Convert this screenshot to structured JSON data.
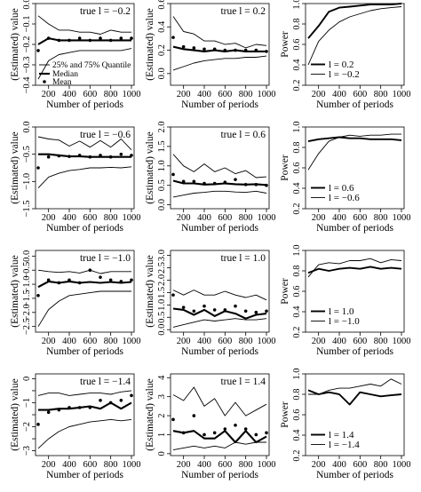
{
  "figure": {
    "periods": [
      100,
      200,
      300,
      400,
      500,
      600,
      700,
      800,
      900,
      1000
    ],
    "x_ticks": [
      200,
      400,
      600,
      800,
      1000
    ],
    "xlabel": "Number of periods",
    "legend_labels": {
      "quantile": "25% and 75% Quantile",
      "median": "Median",
      "mean": "Mean"
    }
  },
  "chart_data": [
    {
      "type": "line",
      "panel": "r1c1",
      "title": "true l = −0.2",
      "xlabel": "Number of periods",
      "ylabel": "(Estimated) value",
      "xlim": [
        100,
        1000
      ],
      "ylim": [
        -0.4,
        0.0
      ],
      "yticks": [
        -0.4,
        -0.3,
        -0.2,
        -0.1,
        0.0
      ],
      "ytick_labels": [
        "−0.4",
        "−0.3",
        "−0.2",
        "−0.1",
        "0.0"
      ],
      "series": [
        {
          "role": "upper",
          "values": [
            -0.06,
            -0.1,
            -0.13,
            -0.13,
            -0.14,
            -0.14,
            -0.15,
            -0.13,
            -0.14,
            -0.14
          ]
        },
        {
          "role": "lower",
          "values": [
            -0.37,
            -0.28,
            -0.25,
            -0.24,
            -0.23,
            -0.23,
            -0.23,
            -0.23,
            -0.23,
            -0.22
          ]
        },
        {
          "role": "median",
          "values": [
            -0.2,
            -0.17,
            -0.18,
            -0.18,
            -0.18,
            -0.18,
            -0.18,
            -0.18,
            -0.18,
            -0.18
          ]
        },
        {
          "role": "mean",
          "values": [
            -0.23,
            -0.17,
            -0.18,
            -0.18,
            -0.17,
            -0.18,
            -0.17,
            -0.18,
            -0.17,
            -0.17
          ]
        }
      ],
      "legend": {
        "position": "bottom-right"
      }
    },
    {
      "type": "line",
      "panel": "r1c2",
      "title": "true l = 0.2",
      "xlabel": "Number of periods",
      "ylabel": "(Estimated) value",
      "xlim": [
        100,
        1000
      ],
      "ylim": [
        -0.1,
        0.6
      ],
      "yticks": [
        0.0,
        0.2,
        0.4,
        0.6
      ],
      "ytick_labels": [
        "0.0",
        "0.2",
        "0.4",
        "0.6"
      ],
      "series": [
        {
          "role": "upper",
          "values": [
            0.49,
            0.36,
            0.34,
            0.28,
            0.28,
            0.25,
            0.26,
            0.22,
            0.25,
            0.24
          ]
        },
        {
          "role": "lower",
          "values": [
            0.03,
            0.06,
            0.09,
            0.11,
            0.12,
            0.13,
            0.13,
            0.14,
            0.14,
            0.15
          ]
        },
        {
          "role": "median",
          "values": [
            0.23,
            0.21,
            0.2,
            0.19,
            0.2,
            0.19,
            0.2,
            0.19,
            0.19,
            0.19
          ]
        },
        {
          "role": "mean",
          "values": [
            0.31,
            0.23,
            0.22,
            0.21,
            0.21,
            0.2,
            0.2,
            0.2,
            0.2,
            0.19
          ]
        }
      ]
    },
    {
      "type": "line",
      "panel": "r1c3",
      "xlabel": "Number of periods",
      "ylabel": "Power",
      "xlim": [
        100,
        1000
      ],
      "ylim": [
        0.2,
        1.0
      ],
      "yticks": [
        0.2,
        0.4,
        0.6,
        0.8,
        1.0
      ],
      "ytick_labels": [
        "0.2",
        "0.4",
        "0.6",
        "0.8",
        "1.0"
      ],
      "series": [
        {
          "role": "positive",
          "name": "l =   0.2",
          "values": [
            0.66,
            0.78,
            0.92,
            0.96,
            0.97,
            0.98,
            0.99,
            0.99,
            0.99,
            1.0
          ]
        },
        {
          "role": "negative",
          "name": "l = −0.2",
          "values": [
            0.4,
            0.63,
            0.74,
            0.82,
            0.87,
            0.9,
            0.93,
            0.95,
            0.96,
            0.97
          ]
        }
      ],
      "legend": {
        "position": "bottom-right"
      }
    },
    {
      "type": "line",
      "panel": "r2c1",
      "title": "true l = −0.6",
      "xlabel": "Number of periods",
      "ylabel": "(Estimated) value",
      "xlim": [
        100,
        1000
      ],
      "ylim": [
        -1.5,
        0.0
      ],
      "yticks": [
        -1.5,
        -1.0,
        -0.5,
        0.0
      ],
      "ytick_labels": [
        "−1.5",
        "−1.0",
        "−0.5",
        "0.0"
      ],
      "series": [
        {
          "role": "upper",
          "values": [
            -0.18,
            -0.22,
            -0.24,
            -0.35,
            -0.26,
            -0.37,
            -0.25,
            -0.37,
            -0.22,
            -0.42
          ]
        },
        {
          "role": "lower",
          "values": [
            -1.12,
            -0.92,
            -0.85,
            -0.8,
            -0.78,
            -0.75,
            -0.75,
            -0.74,
            -0.75,
            -0.73
          ]
        },
        {
          "role": "median",
          "values": [
            -0.5,
            -0.5,
            -0.52,
            -0.54,
            -0.54,
            -0.55,
            -0.55,
            -0.55,
            -0.55,
            -0.55
          ]
        },
        {
          "role": "mean",
          "values": [
            -0.75,
            -0.55,
            -0.53,
            -0.54,
            -0.52,
            -0.55,
            -0.52,
            -0.55,
            -0.5,
            -0.52
          ]
        }
      ]
    },
    {
      "type": "line",
      "panel": "r2c2",
      "title": "true l = 0.6",
      "xlabel": "Number of periods",
      "ylabel": "(Estimated) value",
      "xlim": [
        100,
        1000
      ],
      "ylim": [
        -0.1,
        2.0
      ],
      "yticks": [
        0.0,
        0.5,
        1.0,
        1.5,
        2.0
      ],
      "ytick_labels": [
        "0.0",
        "0.5",
        "1.0",
        "1.5",
        "2.0"
      ],
      "series": [
        {
          "role": "upper",
          "values": [
            1.3,
            1.0,
            0.85,
            1.05,
            0.85,
            0.95,
            0.8,
            0.88,
            0.7,
            0.72
          ]
        },
        {
          "role": "lower",
          "values": [
            0.2,
            0.25,
            0.3,
            0.32,
            0.35,
            0.35,
            0.33,
            0.32,
            0.35,
            0.3
          ]
        },
        {
          "role": "median",
          "values": [
            0.62,
            0.55,
            0.55,
            0.52,
            0.53,
            0.55,
            0.53,
            0.52,
            0.53,
            0.51
          ]
        },
        {
          "role": "mean",
          "values": [
            0.78,
            0.6,
            0.6,
            0.55,
            0.55,
            0.58,
            0.65,
            0.52,
            0.52,
            0.5
          ]
        }
      ]
    },
    {
      "type": "line",
      "panel": "r2c3",
      "xlabel": "Number of periods",
      "ylabel": "Power",
      "xlim": [
        100,
        1000
      ],
      "ylim": [
        0.2,
        1.0
      ],
      "yticks": [
        0.2,
        0.4,
        0.6,
        0.8,
        1.0
      ],
      "ytick_labels": [
        "0.2",
        "0.4",
        "0.6",
        "0.8",
        "1.0"
      ],
      "series": [
        {
          "role": "positive",
          "name": "l =   0.6",
          "values": [
            0.86,
            0.88,
            0.89,
            0.9,
            0.89,
            0.89,
            0.88,
            0.88,
            0.88,
            0.87
          ]
        },
        {
          "role": "negative",
          "name": "l = −0.6",
          "values": [
            0.58,
            0.74,
            0.86,
            0.9,
            0.92,
            0.91,
            0.92,
            0.92,
            0.93,
            0.93
          ]
        }
      ],
      "legend": {
        "position": "bottom-right"
      }
    },
    {
      "type": "line",
      "panel": "r3c1",
      "title": "true l = −1.0",
      "xlabel": "Number of periods",
      "ylabel": "(Estimated) value",
      "xlim": [
        100,
        1000
      ],
      "ylim": [
        -2.7,
        0.2
      ],
      "yticks": [
        -2.5,
        -2.0,
        -1.5,
        -1.0,
        -0.5,
        0.0
      ],
      "ytick_labels": [
        "−2.5",
        "−2.0",
        "−1.5",
        "−1.0",
        "−0.5",
        "0.0"
      ],
      "series": [
        {
          "role": "upper",
          "values": [
            -0.5,
            -0.55,
            -0.58,
            -0.55,
            -0.6,
            -0.5,
            -0.62,
            -0.55,
            -0.55,
            -0.55
          ]
        },
        {
          "role": "lower",
          "values": [
            -2.5,
            -1.9,
            -1.6,
            -1.4,
            -1.35,
            -1.3,
            -1.25,
            -1.25,
            -1.25,
            -1.25
          ]
        },
        {
          "role": "median",
          "values": [
            -1.1,
            -0.9,
            -0.95,
            -0.9,
            -0.95,
            -0.92,
            -0.95,
            -0.92,
            -0.95,
            -0.92
          ]
        },
        {
          "role": "mean",
          "values": [
            -1.4,
            -0.85,
            -0.95,
            -0.85,
            -0.95,
            -0.5,
            -0.75,
            -0.85,
            -0.9,
            -0.85
          ]
        }
      ]
    },
    {
      "type": "line",
      "panel": "r3c2",
      "title": "true l = 1.0",
      "xlabel": "Number of periods",
      "ylabel": "(Estimated) value",
      "xlim": [
        100,
        1000
      ],
      "ylim": [
        -0.1,
        3.2
      ],
      "yticks": [
        0.0,
        0.5,
        1.0,
        1.5,
        2.0,
        2.5,
        3.0
      ],
      "ytick_labels": [
        "0.0",
        "0.5",
        "1.0",
        "1.5",
        "2.0",
        "2.5",
        "3.0"
      ],
      "series": [
        {
          "role": "upper",
          "values": [
            1.6,
            1.4,
            1.6,
            1.4,
            1.4,
            1.55,
            1.4,
            1.3,
            1.4,
            1.2
          ]
        },
        {
          "role": "lower",
          "values": [
            0.1,
            0.2,
            0.3,
            0.4,
            0.35,
            0.4,
            0.45,
            0.4,
            0.4,
            0.45
          ]
        },
        {
          "role": "median",
          "values": [
            0.85,
            0.8,
            0.6,
            0.8,
            0.55,
            0.75,
            0.65,
            0.45,
            0.6,
            0.65
          ]
        },
        {
          "role": "mean",
          "values": [
            1.4,
            0.9,
            0.75,
            0.95,
            0.8,
            0.8,
            0.95,
            0.75,
            0.7,
            0.75
          ]
        }
      ]
    },
    {
      "type": "line",
      "panel": "r3c3",
      "xlabel": "Number of periods",
      "ylabel": "Power",
      "xlim": [
        100,
        1000
      ],
      "ylim": [
        0.2,
        1.0
      ],
      "yticks": [
        0.2,
        0.4,
        0.6,
        0.8,
        1.0
      ],
      "ytick_labels": [
        "0.2",
        "0.4",
        "0.6",
        "0.8",
        "1.0"
      ],
      "series": [
        {
          "role": "positive",
          "name": "l =   1.0",
          "values": [
            0.78,
            0.82,
            0.8,
            0.82,
            0.83,
            0.82,
            0.84,
            0.82,
            0.83,
            0.82
          ]
        },
        {
          "role": "negative",
          "name": "l = −1.0",
          "values": [
            0.74,
            0.86,
            0.88,
            0.87,
            0.9,
            0.9,
            0.92,
            0.88,
            0.91,
            0.9
          ]
        }
      ],
      "legend": {
        "position": "bottom-right"
      }
    },
    {
      "type": "line",
      "panel": "r4c1",
      "title": "true l = −1.4",
      "xlabel": "Number of periods",
      "ylabel": "(Estimated) value",
      "xlim": [
        100,
        1000
      ],
      "ylim": [
        -3.2,
        0.2
      ],
      "yticks": [
        -3.0,
        -2.5,
        -2.0,
        -1.5,
        -1.0,
        -0.5,
        0.0
      ],
      "ytick_labels": [
        "−3",
        "",
        "−2",
        "",
        "−1",
        "",
        "0"
      ],
      "series": [
        {
          "role": "upper",
          "values": [
            -0.7,
            -0.6,
            -0.6,
            -0.7,
            -0.65,
            -0.6,
            -0.6,
            -0.65,
            -0.55,
            -0.5
          ]
        },
        {
          "role": "lower",
          "values": [
            -2.9,
            -2.5,
            -2.2,
            -2.0,
            -1.9,
            -1.8,
            -1.75,
            -1.7,
            -1.75,
            -1.7
          ]
        },
        {
          "role": "median",
          "values": [
            -1.3,
            -1.3,
            -1.25,
            -1.25,
            -1.2,
            -1.15,
            -1.25,
            -1.0,
            -1.25,
            -1.0
          ]
        },
        {
          "role": "mean",
          "values": [
            -1.9,
            -1.4,
            -1.3,
            -1.2,
            -1.2,
            -1.2,
            -0.9,
            -1.0,
            -0.9,
            -0.7
          ]
        }
      ]
    },
    {
      "type": "line",
      "panel": "r4c2",
      "title": "true l = 1.4",
      "xlabel": "Number of periods",
      "ylabel": "(Estimated) value",
      "xlim": [
        100,
        1000
      ],
      "ylim": [
        -0.1,
        4.2
      ],
      "yticks": [
        0,
        1,
        2,
        3,
        4
      ],
      "ytick_labels": [
        "0",
        "1",
        "2",
        "3",
        "4"
      ],
      "series": [
        {
          "role": "upper",
          "values": [
            3.1,
            2.8,
            3.5,
            2.5,
            2.9,
            2.0,
            2.7,
            2.0,
            2.3,
            2.6
          ]
        },
        {
          "role": "lower",
          "values": [
            0.2,
            0.3,
            0.4,
            0.3,
            0.4,
            0.3,
            0.6,
            0.5,
            0.6,
            0.6
          ]
        },
        {
          "role": "median",
          "values": [
            1.2,
            1.1,
            1.2,
            0.8,
            0.8,
            1.2,
            0.6,
            1.2,
            0.6,
            0.9
          ]
        },
        {
          "role": "mean",
          "values": [
            1.8,
            1.1,
            2.0,
            1.0,
            1.1,
            1.3,
            1.5,
            1.3,
            1.0,
            1.1
          ]
        }
      ]
    },
    {
      "type": "line",
      "panel": "r4c3",
      "xlabel": "Number of periods",
      "ylabel": "Power",
      "xlim": [
        100,
        1000
      ],
      "ylim": [
        0.2,
        1.0
      ],
      "yticks": [
        0.2,
        0.4,
        0.6,
        0.8,
        1.0
      ],
      "ytick_labels": [
        "0.2",
        "0.4",
        "0.6",
        "0.8",
        "1.0"
      ],
      "series": [
        {
          "role": "positive",
          "name": "l =   1.4",
          "values": [
            0.84,
            0.8,
            0.82,
            0.8,
            0.7,
            0.82,
            0.8,
            0.78,
            0.79,
            0.8
          ]
        },
        {
          "role": "negative",
          "name": "l = −1.4",
          "values": [
            0.8,
            0.8,
            0.84,
            0.86,
            0.86,
            0.88,
            0.9,
            0.88,
            0.95,
            0.9
          ]
        }
      ],
      "legend": {
        "position": "bottom-right"
      }
    }
  ]
}
